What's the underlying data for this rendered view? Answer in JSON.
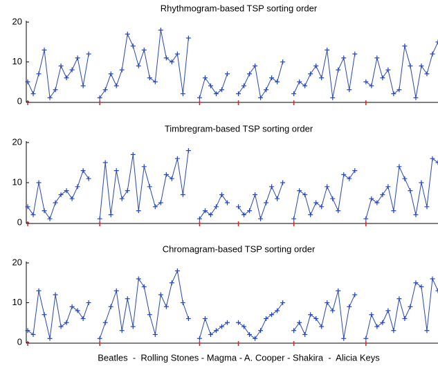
{
  "chart_data": [
    {
      "type": "line",
      "title": "Rhythmogram-based TSP sorting order",
      "ylim": [
        0,
        20
      ],
      "yticks": [
        0,
        10,
        20
      ],
      "series": [
        {
          "color": "#2443c0",
          "values": [
            5,
            2,
            7,
            13,
            1,
            3,
            9,
            6,
            8,
            11,
            4,
            12,
            null,
            1,
            3,
            7,
            4,
            8,
            17,
            14,
            9,
            13,
            6,
            5,
            18,
            11,
            10,
            12,
            2,
            16,
            null,
            1,
            6,
            4,
            2,
            3,
            7,
            null,
            2,
            4,
            7,
            9,
            1,
            3,
            6,
            5,
            10,
            null,
            2,
            5,
            4,
            7,
            9,
            6,
            13,
            1,
            8,
            11,
            3,
            12,
            null,
            5,
            4,
            11,
            6,
            8,
            2,
            3,
            14,
            9,
            1,
            9,
            7,
            12,
            15
          ]
        }
      ]
    },
    {
      "type": "line",
      "title": "Timbregram-based TSP sorting order",
      "ylim": [
        0,
        20
      ],
      "yticks": [
        0,
        10,
        20
      ],
      "series": [
        {
          "color": "#2443c0",
          "values": [
            4,
            2,
            10,
            3,
            1,
            5,
            7,
            8,
            6,
            9,
            13,
            11,
            null,
            1,
            15,
            2,
            13,
            6,
            8,
            17,
            3,
            14,
            9,
            4,
            5,
            12,
            11,
            16,
            7,
            18,
            null,
            1,
            3,
            2,
            4,
            7,
            5,
            null,
            4,
            2,
            3,
            7,
            1,
            5,
            9,
            6,
            10,
            null,
            1,
            8,
            7,
            2,
            5,
            4,
            9,
            6,
            3,
            12,
            11,
            13,
            null,
            1,
            6,
            5,
            7,
            9,
            3,
            14,
            11,
            8,
            2,
            10,
            4,
            16,
            15
          ]
        }
      ]
    },
    {
      "type": "line",
      "title": "Chromagram-based TSP sorting order",
      "ylim": [
        0,
        20
      ],
      "yticks": [
        0,
        10,
        20
      ],
      "xlabel": "Beatles  -  Rolling Stones - Magma - A. Cooper - Shakira  -  Alicia Keys",
      "series": [
        {
          "color": "#2443c0",
          "values": [
            3,
            2,
            13,
            7,
            1,
            12,
            4,
            5,
            9,
            8,
            6,
            10,
            null,
            1,
            5,
            9,
            13,
            3,
            11,
            4,
            16,
            14,
            7,
            2,
            12,
            9,
            15,
            18,
            10,
            6,
            null,
            1,
            6,
            2,
            3,
            4,
            5,
            null,
            5,
            4,
            2,
            1,
            3,
            6,
            7,
            8,
            10,
            null,
            3,
            5,
            2,
            7,
            6,
            4,
            10,
            8,
            13,
            1,
            9,
            12,
            null,
            1,
            7,
            4,
            5,
            8,
            3,
            11,
            6,
            9,
            15,
            14,
            3,
            16,
            13
          ]
        }
      ]
    }
  ]
}
